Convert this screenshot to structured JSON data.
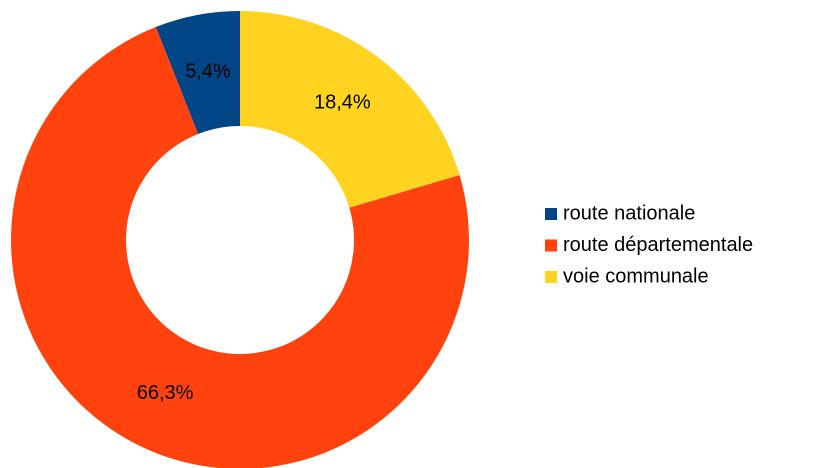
{
  "chart_data": {
    "type": "donut",
    "categories": [
      "route nationale",
      "route départementale",
      "voie communale"
    ],
    "values": [
      5.4,
      66.3,
      18.4
    ],
    "value_labels": [
      "5,4%",
      "66,3%",
      "18,4%"
    ],
    "colors": [
      "#004586",
      "#ff420e",
      "#ffd320"
    ],
    "legend": "right"
  }
}
